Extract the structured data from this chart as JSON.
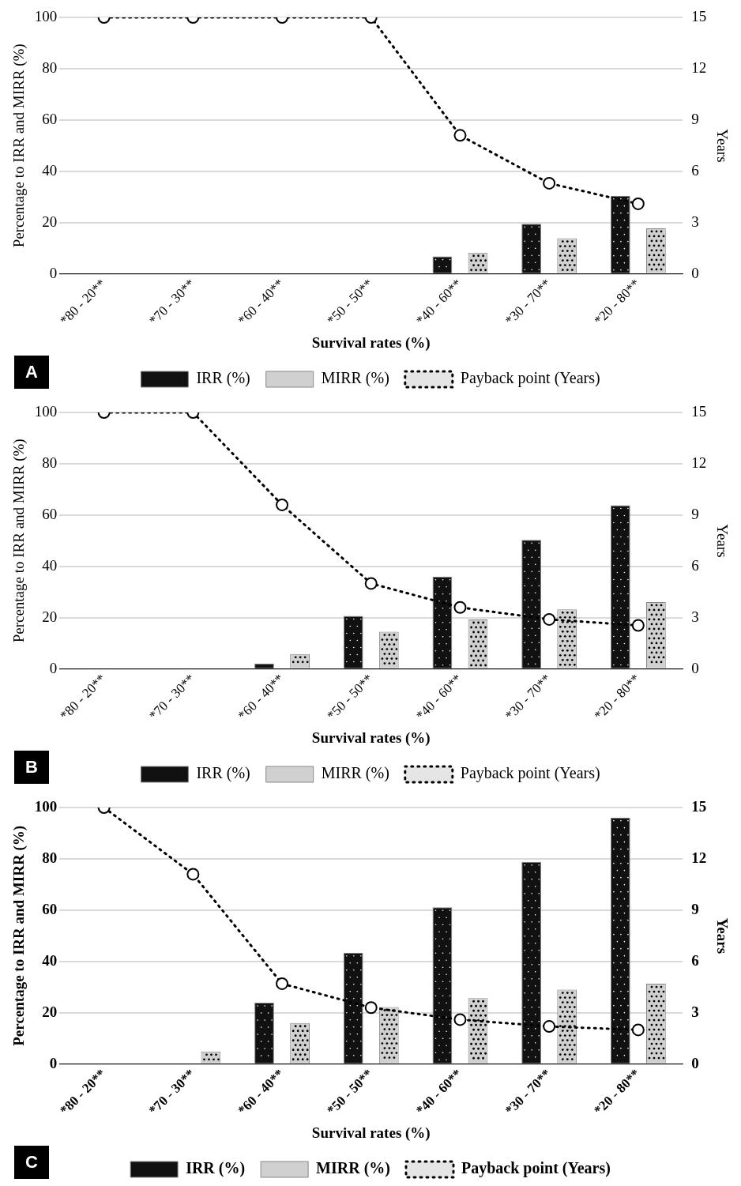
{
  "chart_data": [
    {
      "type": "bar",
      "xlabel": "Survival rates (%)",
      "ylabel": "Percentage to IRR and MIRR (%)",
      "y2label": "Years",
      "annotations": [
        "A"
      ],
      "categories": [
        "*80 - 20**",
        "*70 - 30**",
        "*60 - 40**",
        "*50 - 50**",
        "*40 - 60**",
        "*30 - 70**",
        "*20 - 80**"
      ],
      "series": [
        {
          "name": "IRR (%)",
          "color": "#111111",
          "values": [
            null,
            null,
            null,
            null,
            6.8,
            19.5,
            30.5
          ]
        },
        {
          "name": "MIRR (%)",
          "color": "#d0d0d0",
          "values": [
            null,
            null,
            null,
            null,
            8.3,
            13.9,
            17.8
          ]
        },
        {
          "name": "Payback point (Years)",
          "type": "line",
          "axis": "y2",
          "color": "#000000",
          "line_style": "dotted",
          "marker": "circle",
          "values": [
            15,
            15,
            15,
            15,
            8.1,
            5.3,
            4.1
          ]
        }
      ],
      "ylim": [
        0,
        100
      ],
      "yticks": [
        0,
        20,
        40,
        60,
        80,
        100
      ],
      "y2lim": [
        0,
        15
      ],
      "y2ticks": [
        0,
        3,
        6,
        9,
        12,
        15
      ],
      "grid": "y",
      "legend": "bottom"
    },
    {
      "type": "bar",
      "xlabel": "Survival rates (%)",
      "ylabel": "Percentage to IRR and MIRR (%)",
      "y2label": "Years",
      "annotations": [
        "B"
      ],
      "categories": [
        "*80 - 20**",
        "*70 - 30**",
        "*60 - 40**",
        "*50 - 50**",
        "*40 - 60**",
        "*30 - 70**",
        "*20 - 80**"
      ],
      "series": [
        {
          "name": "IRR (%)",
          "color": "#111111",
          "values": [
            null,
            null,
            2.1,
            20.7,
            36,
            50.3,
            63.8
          ]
        },
        {
          "name": "MIRR (%)",
          "color": "#d0d0d0",
          "values": [
            null,
            null,
            5.8,
            14.5,
            19.3,
            23.2,
            26.1
          ]
        },
        {
          "name": "Payback point (Years)",
          "type": "line",
          "axis": "y2",
          "color": "#000000",
          "line_style": "dotted",
          "marker": "circle",
          "values": [
            15,
            15,
            9.6,
            5,
            3.6,
            2.9,
            2.55
          ]
        }
      ],
      "ylim": [
        0,
        100
      ],
      "yticks": [
        0,
        20,
        40,
        60,
        80,
        100
      ],
      "y2lim": [
        0,
        15
      ],
      "y2ticks": [
        0,
        3,
        6,
        9,
        12,
        15
      ],
      "grid": "y",
      "legend": "bottom"
    },
    {
      "type": "bar",
      "xlabel": "Survival rates (%)",
      "ylabel": "Percentage to IRR and MIRR (%)",
      "y2label": "Years",
      "annotations": [
        "C"
      ],
      "categories": [
        "*80 - 20**",
        "*70 - 30**",
        "*60 - 40**",
        "*50 - 50**",
        "*40 - 60**",
        "*30 - 70**",
        "*20 - 80**"
      ],
      "series": [
        {
          "name": "IRR (%)",
          "color": "#111111",
          "values": [
            null,
            null,
            23.9,
            43.4,
            61.1,
            78.8,
            96.1
          ]
        },
        {
          "name": "MIRR (%)",
          "color": "#d0d0d0",
          "values": [
            null,
            4.9,
            16,
            22.2,
            25.7,
            29,
            31.3
          ]
        },
        {
          "name": "Payback point (Years)",
          "type": "line",
          "axis": "y2",
          "color": "#000000",
          "line_style": "dotted",
          "marker": "circle",
          "values": [
            15,
            11.1,
            4.7,
            3.3,
            2.6,
            2.2,
            2
          ]
        }
      ],
      "ylim": [
        0,
        100
      ],
      "yticks": [
        0,
        20,
        40,
        60,
        80,
        100
      ],
      "y2lim": [
        0,
        15
      ],
      "y2ticks": [
        0,
        3,
        6,
        9,
        12,
        15
      ],
      "grid": "y",
      "legend": "bottom"
    }
  ]
}
